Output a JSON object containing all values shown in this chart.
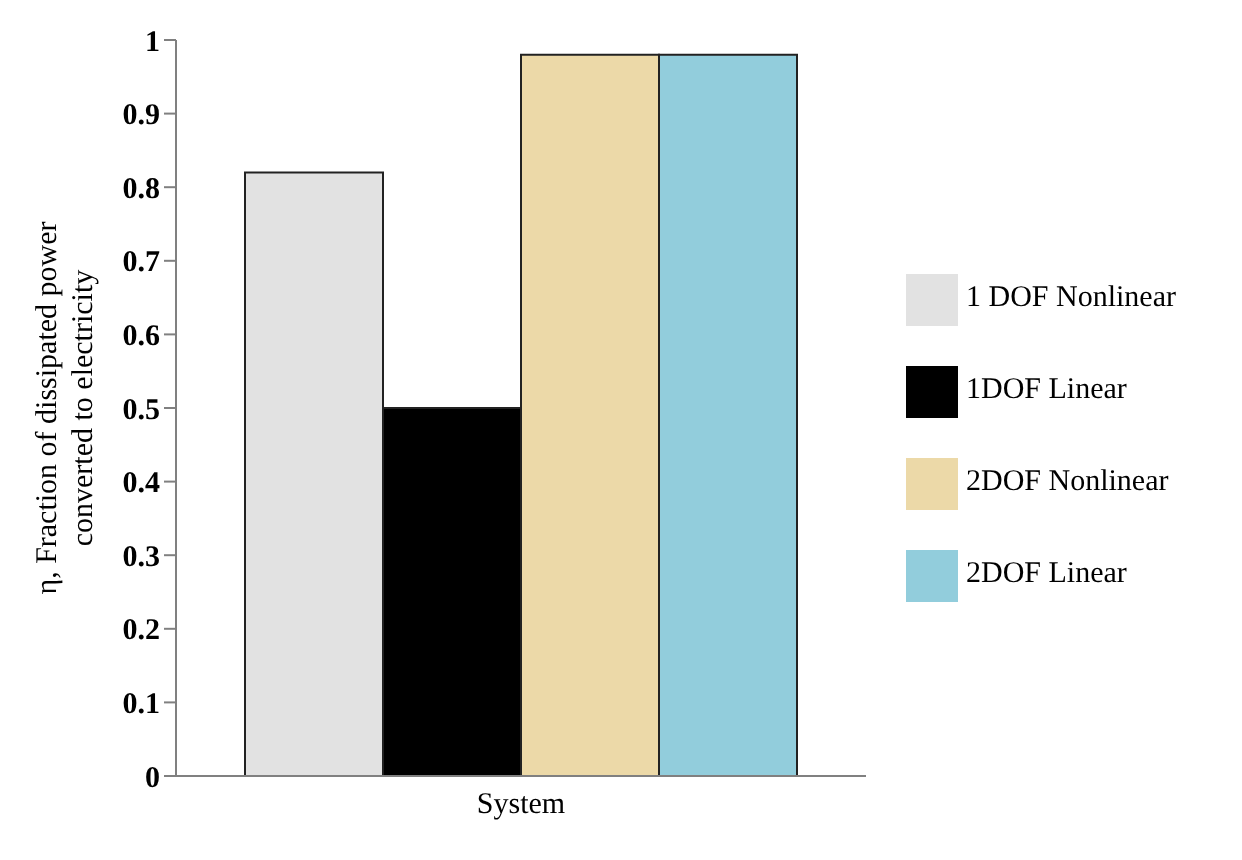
{
  "chart_data": {
    "type": "bar",
    "ylabel": "η, Fraction of dissipated power converted to electricity",
    "categories": [
      "System"
    ],
    "series": [
      {
        "name": "1 DOF Nonlinear",
        "color": "#e2e2e2",
        "values": [
          0.82
        ]
      },
      {
        "name": "1DOF Linear",
        "color": "#000000",
        "values": [
          0.5
        ]
      },
      {
        "name": "2DOF Nonlinear",
        "color": "#ecd9a8",
        "values": [
          0.98
        ]
      },
      {
        "name": "2DOF Linear",
        "color": "#92cddc",
        "values": [
          0.98
        ]
      }
    ],
    "ylim": [
      0,
      1
    ],
    "yticks": [
      0,
      0.1,
      0.2,
      0.3,
      0.4,
      0.5,
      0.6,
      0.7,
      0.8,
      0.9,
      1
    ],
    "grid": false,
    "legend": "right"
  }
}
